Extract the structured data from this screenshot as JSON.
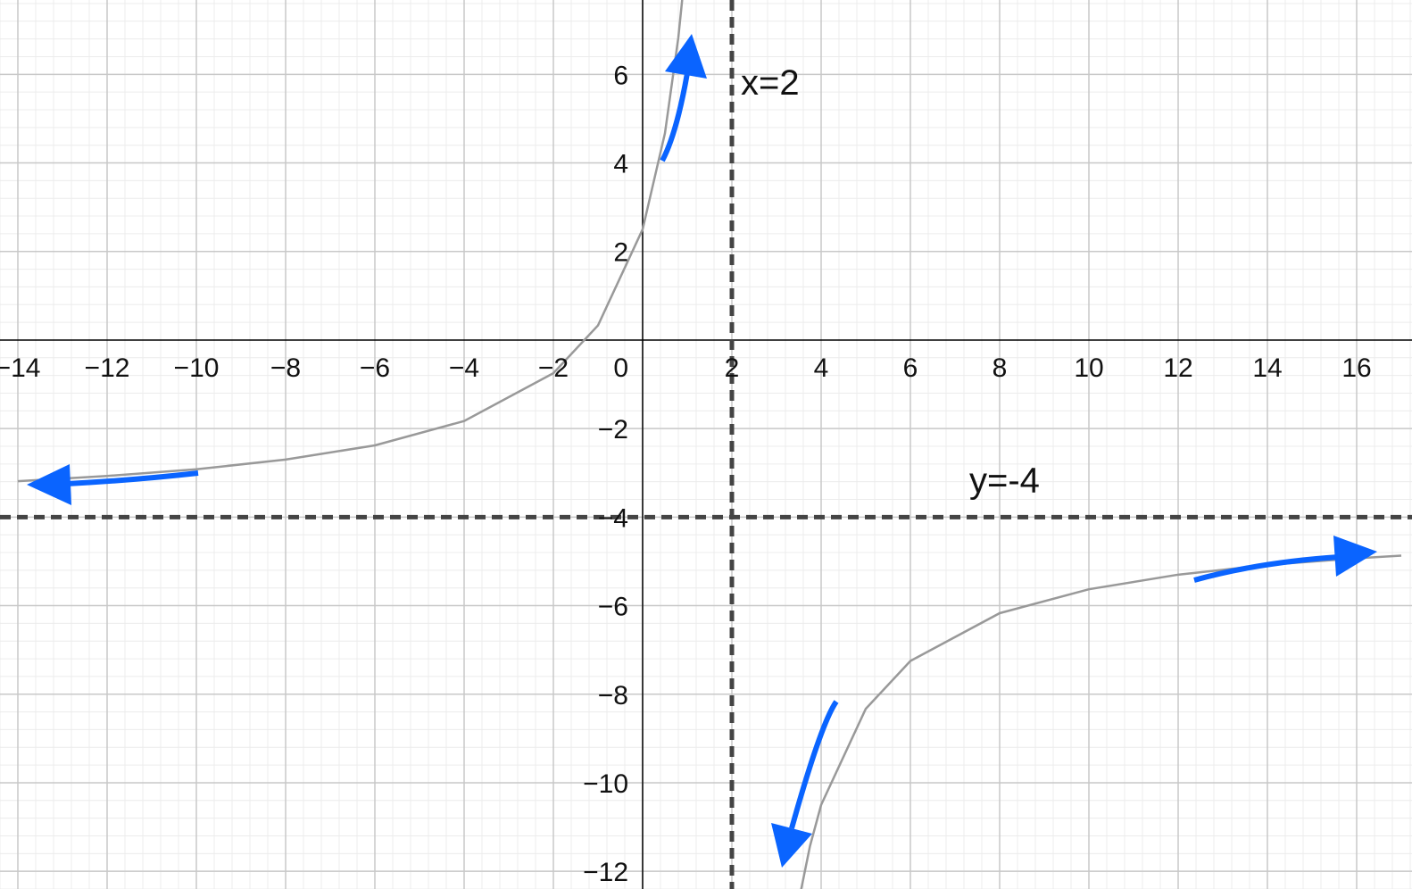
{
  "chart_data": {
    "type": "line",
    "x": [
      -14,
      -12,
      -10,
      -8,
      -6,
      -4,
      -2,
      -1,
      0,
      0.5,
      0.8,
      0.9,
      2,
      3.5,
      3.75,
      4,
      5,
      6,
      8,
      10,
      12,
      14,
      16,
      17
    ],
    "series": [
      {
        "color": "#999999",
        "values": [
          -3.19,
          -3.07,
          -2.92,
          -2.7,
          -2.38,
          -1.83,
          -0.75,
          0.33,
          2.5,
          4.67,
          6.83,
          7.82,
          null,
          -12.67,
          -11.43,
          -10.5,
          -8.33,
          -7.25,
          -6.17,
          -5.63,
          -5.3,
          -5.08,
          -4.93,
          -4.87
        ]
      }
    ],
    "xlim": [
      -14.4,
      17.24
    ],
    "ylim": [
      -12.4,
      7.68
    ],
    "xticks": [
      {
        "value": -14,
        "label": "−14"
      },
      {
        "value": -12,
        "label": "−12"
      },
      {
        "value": -10,
        "label": "−10"
      },
      {
        "value": -8,
        "label": "−8"
      },
      {
        "value": -6,
        "label": "−6"
      },
      {
        "value": -4,
        "label": "−4"
      },
      {
        "value": -2,
        "label": "−2"
      },
      0,
      2,
      4,
      6,
      8,
      10,
      12,
      14,
      16
    ],
    "yticks": [
      {
        "value": -12,
        "label": "−12"
      },
      {
        "value": -10,
        "label": "−10"
      },
      {
        "value": -8,
        "label": "−8"
      },
      {
        "value": -6,
        "label": "−6"
      },
      {
        "value": -4,
        "label": "−4"
      },
      {
        "value": -2,
        "label": "−2"
      },
      2,
      4,
      6
    ],
    "asymptotes": [
      {
        "axis": "x",
        "value": 2,
        "label": "x=2"
      },
      {
        "axis": "y",
        "value": -4,
        "label": "y=-4"
      }
    ],
    "grid": true
  }
}
